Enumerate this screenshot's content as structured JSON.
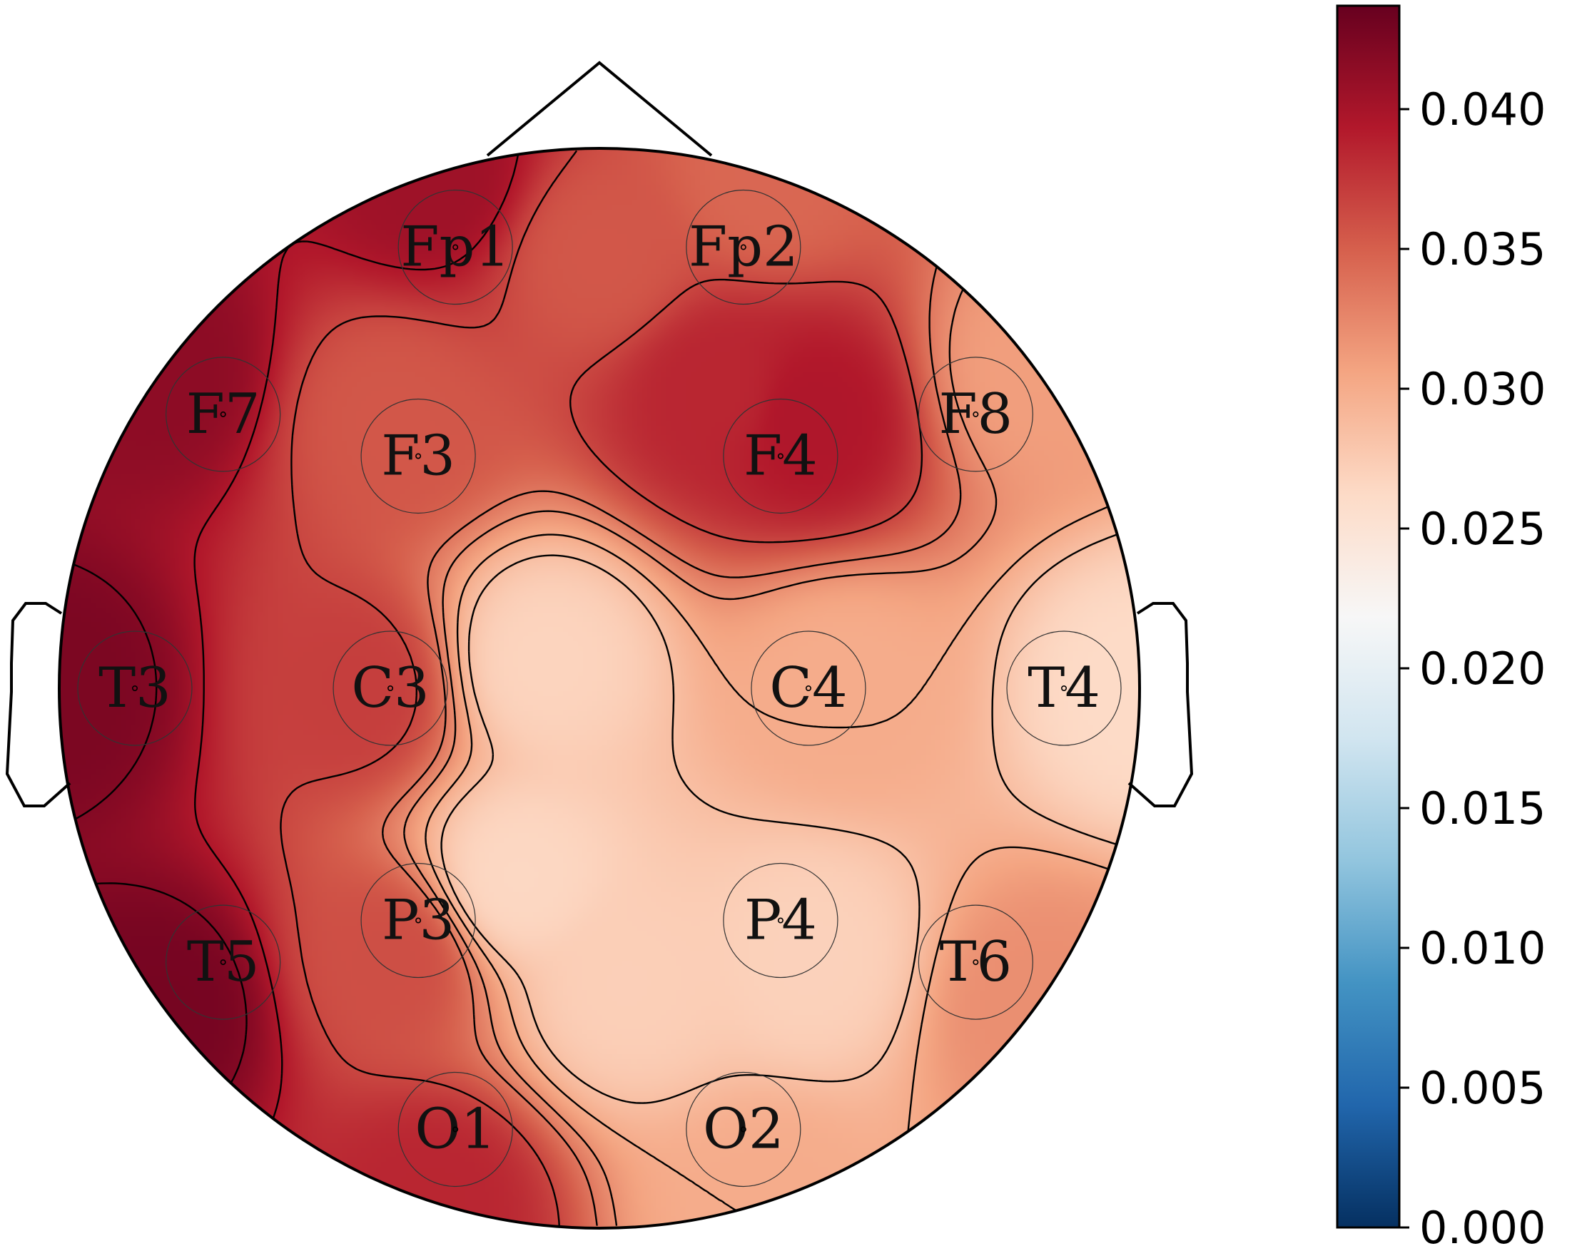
{
  "chart_data": {
    "type": "heatmap",
    "subtype": "eeg-topomap",
    "title": "",
    "colormap": "RdBu_r",
    "colormap_stops": [
      "#053061",
      "#2166ac",
      "#4393c3",
      "#92c5de",
      "#d1e5f0",
      "#f7f7f7",
      "#fddbc7",
      "#f4a582",
      "#d6604d",
      "#b2182b",
      "#67001f"
    ],
    "color_range": [
      0.0,
      0.0437
    ],
    "colorbar": {
      "ticks": [
        0.0,
        0.005,
        0.01,
        0.015,
        0.02,
        0.025,
        0.03,
        0.035,
        0.04
      ],
      "tick_labels": [
        "0.000",
        "0.005",
        "0.010",
        "0.015",
        "0.020",
        "0.025",
        "0.030",
        "0.035",
        "0.040"
      ],
      "position": "right"
    },
    "contours": true,
    "electrodes": [
      {
        "name": "Fp1",
        "value": 0.0405,
        "pos": [
          -0.31,
          0.95
        ]
      },
      {
        "name": "Fp2",
        "value": 0.0345,
        "pos": [
          0.31,
          0.95
        ]
      },
      {
        "name": "F7",
        "value": 0.0415,
        "pos": [
          -0.81,
          0.59
        ]
      },
      {
        "name": "F3",
        "value": 0.0355,
        "pos": [
          -0.39,
          0.5
        ]
      },
      {
        "name": "F4",
        "value": 0.0395,
        "pos": [
          0.39,
          0.5
        ]
      },
      {
        "name": "F8",
        "value": 0.031,
        "pos": [
          0.81,
          0.59
        ]
      },
      {
        "name": "T3",
        "value": 0.0425,
        "pos": [
          -1.0,
          0.0
        ]
      },
      {
        "name": "C3",
        "value": 0.037,
        "pos": [
          -0.45,
          0.0
        ]
      },
      {
        "name": "C4",
        "value": 0.03,
        "pos": [
          0.45,
          0.0
        ]
      },
      {
        "name": "T4",
        "value": 0.0262,
        "pos": [
          1.0,
          0.0
        ]
      },
      {
        "name": "T5",
        "value": 0.0428,
        "pos": [
          -0.81,
          -0.59
        ]
      },
      {
        "name": "P3",
        "value": 0.036,
        "pos": [
          -0.39,
          -0.5
        ]
      },
      {
        "name": "P4",
        "value": 0.027,
        "pos": [
          0.39,
          -0.5
        ]
      },
      {
        "name": "T6",
        "value": 0.032,
        "pos": [
          0.81,
          -0.59
        ]
      },
      {
        "name": "O1",
        "value": 0.0385,
        "pos": [
          -0.31,
          -0.95
        ]
      },
      {
        "name": "O2",
        "value": 0.03,
        "pos": [
          0.31,
          -0.95
        ]
      }
    ],
    "interior_points": [
      {
        "value": 0.0265,
        "pos": [
          -0.15,
          -0.35
        ]
      },
      {
        "value": 0.0268,
        "pos": [
          -0.1,
          0.05
        ]
      },
      {
        "value": 0.0272,
        "pos": [
          0.05,
          -0.55
        ]
      },
      {
        "value": 0.0385,
        "pos": [
          0.22,
          0.55
        ]
      },
      {
        "value": 0.0355,
        "pos": [
          0.0,
          0.8
        ]
      }
    ]
  }
}
